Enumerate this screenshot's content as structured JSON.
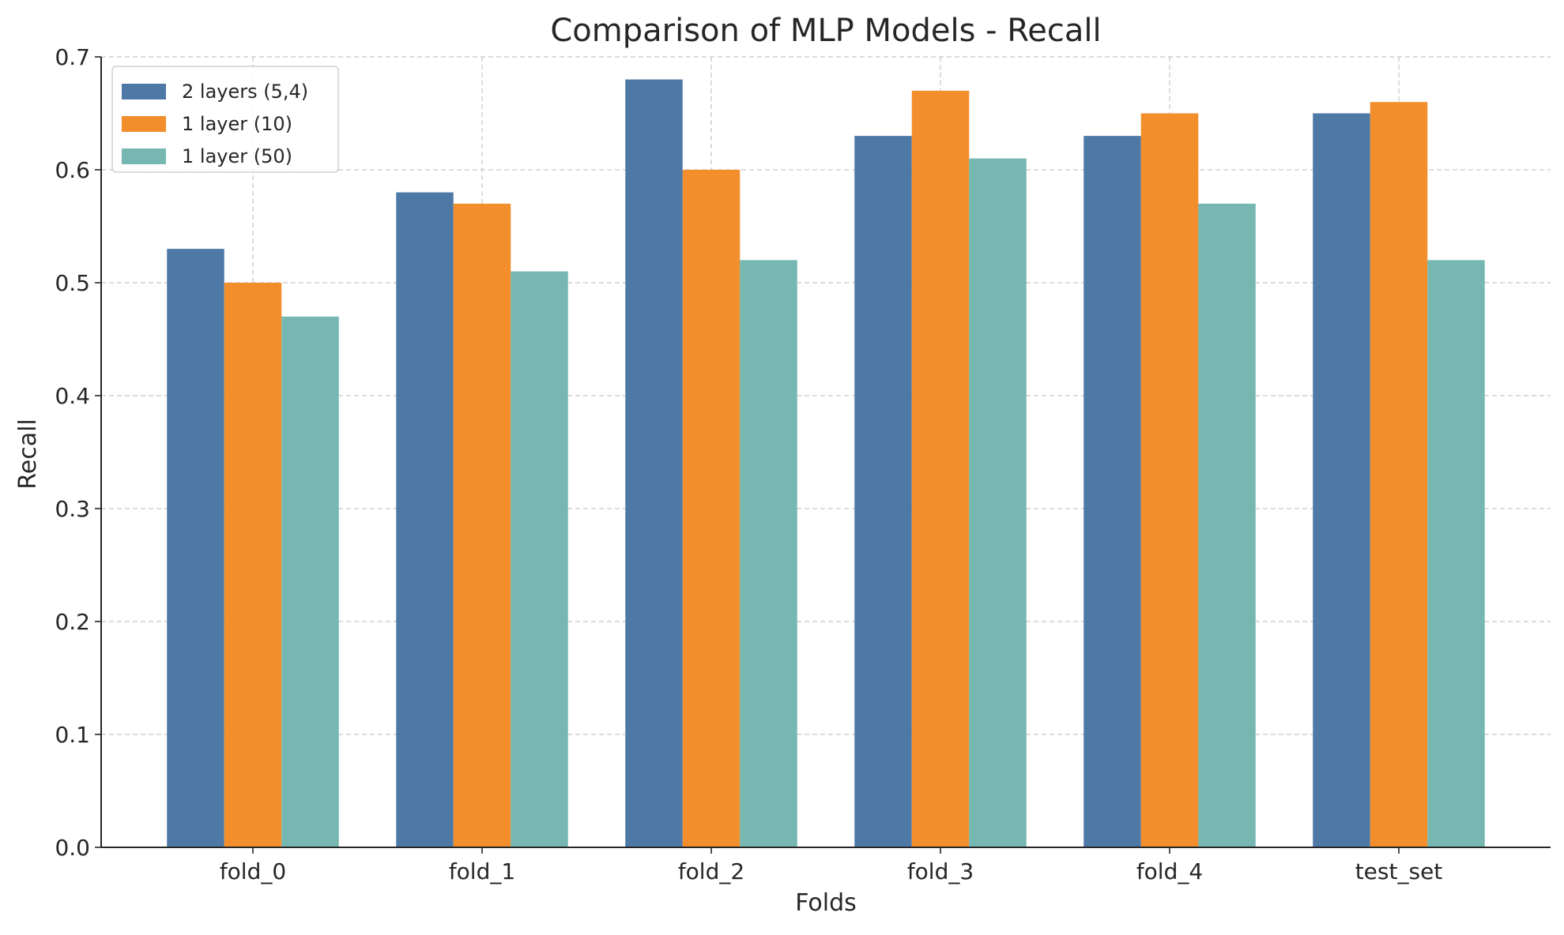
{
  "chart_data": {
    "type": "bar",
    "title": "Comparison of MLP Models - Recall",
    "xlabel": "Folds",
    "ylabel": "Recall",
    "categories": [
      "fold_0",
      "fold_1",
      "fold_2",
      "fold_3",
      "fold_4",
      "test_set"
    ],
    "series": [
      {
        "name": "2 layers (5,4)",
        "color": "#4e79a7",
        "values": [
          0.53,
          0.58,
          0.68,
          0.63,
          0.63,
          0.65
        ]
      },
      {
        "name": "1 layer (10)",
        "color": "#f28e2b",
        "values": [
          0.5,
          0.57,
          0.6,
          0.67,
          0.65,
          0.66
        ]
      },
      {
        "name": "1 layer (50)",
        "color": "#76b7b2",
        "values": [
          0.47,
          0.51,
          0.52,
          0.61,
          0.57,
          0.52
        ]
      }
    ],
    "ylim": [
      0,
      0.7
    ],
    "yticks": [
      "0.0",
      "0.1",
      "0.2",
      "0.3",
      "0.4",
      "0.5",
      "0.6",
      "0.7"
    ],
    "grid": true,
    "legend": "top-left"
  }
}
